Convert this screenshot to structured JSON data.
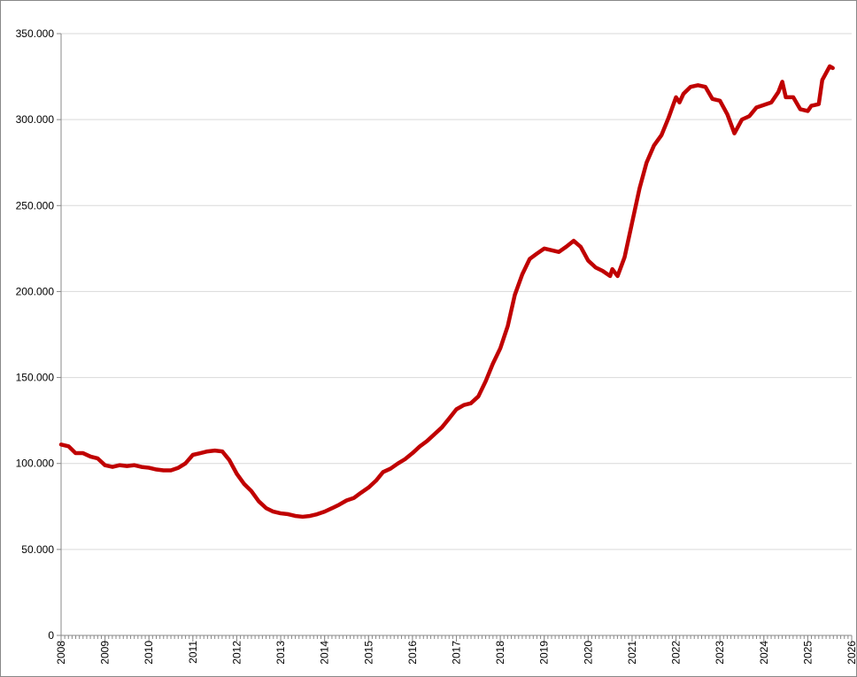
{
  "chart_data": {
    "type": "line",
    "x": [
      2008.0,
      2008.17,
      2008.33,
      2008.5,
      2008.67,
      2008.83,
      2009.0,
      2009.17,
      2009.33,
      2009.5,
      2009.67,
      2009.83,
      2010.0,
      2010.17,
      2010.33,
      2010.5,
      2010.67,
      2010.83,
      2011.0,
      2011.17,
      2011.33,
      2011.5,
      2011.67,
      2011.83,
      2012.0,
      2012.17,
      2012.33,
      2012.5,
      2012.67,
      2012.83,
      2013.0,
      2013.17,
      2013.33,
      2013.5,
      2013.67,
      2013.83,
      2014.0,
      2014.17,
      2014.33,
      2014.5,
      2014.67,
      2014.83,
      2015.0,
      2015.17,
      2015.33,
      2015.5,
      2015.67,
      2015.83,
      2016.0,
      2016.17,
      2016.33,
      2016.5,
      2016.67,
      2016.83,
      2017.0,
      2017.17,
      2017.33,
      2017.5,
      2017.67,
      2017.83,
      2018.0,
      2018.17,
      2018.33,
      2018.5,
      2018.67,
      2018.83,
      2019.0,
      2019.17,
      2019.33,
      2019.5,
      2019.67,
      2019.83,
      2020.0,
      2020.17,
      2020.33,
      2020.5,
      2020.55,
      2020.67,
      2020.83,
      2021.0,
      2021.17,
      2021.33,
      2021.5,
      2021.67,
      2021.83,
      2022.0,
      2022.08,
      2022.17,
      2022.33,
      2022.5,
      2022.67,
      2022.83,
      2023.0,
      2023.17,
      2023.33,
      2023.5,
      2023.67,
      2023.83,
      2024.0,
      2024.17,
      2024.33,
      2024.42,
      2024.5,
      2024.67,
      2024.83,
      2025.0,
      2025.08,
      2025.25,
      2025.33,
      2025.5,
      2025.57
    ],
    "series": [
      {
        "color": "#c00000",
        "values": [
          111000,
          110000,
          106000,
          106000,
          104000,
          103000,
          99000,
          98000,
          99000,
          98500,
          99000,
          98000,
          97500,
          96500,
          96000,
          96000,
          97500,
          100000,
          105000,
          106000,
          107000,
          107500,
          107000,
          102000,
          94000,
          88000,
          84000,
          78000,
          74000,
          72000,
          71000,
          70500,
          69500,
          69000,
          69500,
          70500,
          72000,
          74000,
          76000,
          78500,
          80000,
          83000,
          86000,
          90000,
          95000,
          97000,
          100000,
          102500,
          106000,
          110000,
          113000,
          117000,
          121000,
          126000,
          131500,
          134000,
          135000,
          139000,
          148000,
          158000,
          167000,
          180000,
          198000,
          210000,
          219000,
          222000,
          225000,
          224000,
          223000,
          226000,
          229500,
          226000,
          218000,
          214000,
          212000,
          209000,
          213000,
          209000,
          220000,
          240000,
          260000,
          275000,
          285000,
          291000,
          301000,
          313000,
          310000,
          315000,
          319000,
          320000,
          319000,
          312000,
          311000,
          303000,
          292000,
          300000,
          302000,
          307000,
          308500,
          310000,
          316000,
          322000,
          313000,
          313000,
          306000,
          305000,
          308000,
          309000,
          323000,
          331000,
          330000
        ]
      }
    ],
    "xlim": [
      2008,
      2026
    ],
    "xticks": [
      2008,
      2009,
      2010,
      2011,
      2012,
      2013,
      2014,
      2015,
      2016,
      2017,
      2018,
      2019,
      2020,
      2021,
      2022,
      2023,
      2024,
      2025,
      2026
    ],
    "ylim": [
      0,
      350000
    ],
    "yticks": [
      0,
      {
        "value": 50000,
        "label": "50.000"
      },
      {
        "value": 100000,
        "label": "100.000"
      },
      {
        "value": 150000,
        "label": "150.000"
      },
      {
        "value": 200000,
        "label": "200.000"
      },
      {
        "value": 250000,
        "label": "250.000"
      },
      {
        "value": 300000,
        "label": "300.000"
      },
      {
        "value": 350000,
        "label": "350.000"
      }
    ],
    "grid": true
  }
}
